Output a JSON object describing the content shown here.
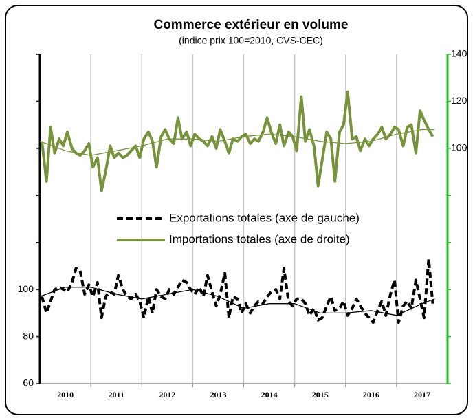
{
  "chart_data": {
    "type": "line",
    "title": "Commerce extérieur en volume",
    "subtitle": "(indice prix 100=2010, CVS-CEC)",
    "xlim": [
      2010,
      2018
    ],
    "xticks": [
      {
        "value": 2010.5,
        "label": "2010"
      },
      {
        "value": 2011.5,
        "label": "2011"
      },
      {
        "value": 2012.5,
        "label": "2012"
      },
      {
        "value": 2013.5,
        "label": "2013"
      },
      {
        "value": 2014.5,
        "label": "2014"
      },
      {
        "value": 2015.5,
        "label": "2015"
      },
      {
        "value": 2016.5,
        "label": "2016"
      },
      {
        "value": 2017.5,
        "label": "2017"
      }
    ],
    "xgrid": [
      2011,
      2012,
      2013,
      2014,
      2015,
      2016,
      2017
    ],
    "ylim": [
      60,
      200
    ],
    "yticks": [
      60,
      80,
      100
    ],
    "yticks_minor": [
      120,
      140,
      160,
      180,
      200
    ],
    "y2lim": [
      0,
      140
    ],
    "y2ticks": [
      100,
      120,
      140
    ],
    "y2ticks_minor": [
      0,
      20,
      40,
      60,
      80
    ],
    "x": [
      2010.04,
      2010.13,
      2010.21,
      2010.29,
      2010.38,
      2010.46,
      2010.54,
      2010.63,
      2010.71,
      2010.79,
      2010.88,
      2010.96,
      2011.04,
      2011.13,
      2011.21,
      2011.29,
      2011.38,
      2011.46,
      2011.54,
      2011.63,
      2011.71,
      2011.79,
      2011.88,
      2011.96,
      2012.04,
      2012.13,
      2012.21,
      2012.29,
      2012.38,
      2012.46,
      2012.54,
      2012.63,
      2012.71,
      2012.79,
      2012.88,
      2012.96,
      2013.04,
      2013.13,
      2013.21,
      2013.29,
      2013.38,
      2013.46,
      2013.54,
      2013.63,
      2013.71,
      2013.79,
      2013.88,
      2013.96,
      2014.04,
      2014.13,
      2014.21,
      2014.29,
      2014.38,
      2014.46,
      2014.54,
      2014.63,
      2014.71,
      2014.79,
      2014.88,
      2014.96,
      2015.04,
      2015.13,
      2015.21,
      2015.29,
      2015.38,
      2015.46,
      2015.54,
      2015.63,
      2015.71,
      2015.79,
      2015.88,
      2015.96,
      2016.04,
      2016.13,
      2016.21,
      2016.29,
      2016.38,
      2016.46,
      2016.54,
      2016.63,
      2016.71,
      2016.79,
      2016.88,
      2016.96,
      2017.04,
      2017.13,
      2017.21,
      2017.29,
      2017.38,
      2017.46,
      2017.54,
      2017.63,
      2017.71
    ],
    "series": [
      {
        "name": "Exportations totales (axe de gauche)",
        "color": "#000000",
        "dashed": true,
        "width": 4,
        "axis": "y",
        "values": [
          97,
          90,
          95,
          100,
          101,
          100,
          99,
          103,
          109,
          108,
          98,
          102,
          97,
          103,
          88,
          97,
          99,
          98,
          106,
          100,
          97,
          96,
          98,
          95,
          88,
          97,
          90,
          100,
          97,
          96,
          100,
          98,
          101,
          104,
          103,
          100,
          98,
          101,
          97,
          106,
          99,
          93,
          98,
          107,
          88,
          97,
          96,
          90,
          94,
          90,
          93,
          95,
          94,
          97,
          99,
          100,
          96,
          109,
          95,
          93,
          96,
          96,
          94,
          89,
          92,
          87,
          88,
          93,
          97,
          91,
          92,
          95,
          89,
          92,
          96,
          93,
          90,
          88,
          86,
          91,
          95,
          89,
          98,
          104,
          86,
          93,
          95,
          92,
          104,
          96,
          88,
          113,
          94
        ]
      },
      {
        "name": "Importations totales (axe de droite)",
        "color": "#77933c",
        "dashed": false,
        "width": 4,
        "axis": "y2",
        "values": [
          103,
          86,
          109,
          98,
          104,
          101,
          107,
          100,
          98,
          97,
          99,
          102,
          92,
          96,
          82,
          90,
          101,
          96,
          98,
          96,
          97,
          99,
          101,
          96,
          104,
          107,
          103,
          92,
          105,
          108,
          104,
          102,
          113,
          104,
          107,
          101,
          106,
          104,
          103,
          101,
          105,
          100,
          108,
          103,
          98,
          104,
          103,
          105,
          106,
          102,
          104,
          103,
          107,
          113,
          107,
          102,
          110,
          101,
          107,
          105,
          99,
          122,
          103,
          108,
          101,
          84,
          95,
          107,
          104,
          86,
          107,
          110,
          124,
          104,
          105,
          99,
          104,
          101,
          104,
          106,
          109,
          104,
          106,
          109,
          108,
          101,
          109,
          110,
          98,
          116,
          112,
          108,
          105
        ]
      },
      {
        "color": "#000000",
        "dashed": false,
        "width": 1.3,
        "axis": "y",
        "x": [
          2010.0,
          2010.5,
          2011.0,
          2011.5,
          2012.0,
          2012.5,
          2013.0,
          2013.5,
          2014.0,
          2014.5,
          2015.0,
          2015.5,
          2016.0,
          2016.5,
          2017.0,
          2017.5,
          2017.75
        ],
        "values": [
          97,
          101,
          101,
          98,
          96,
          98,
          100,
          97,
          92,
          94,
          94,
          90,
          90,
          91,
          89,
          94,
          96
        ]
      },
      {
        "color": "#77933c",
        "dashed": false,
        "width": 1.3,
        "axis": "y2",
        "x": [
          2010.0,
          2010.5,
          2011.0,
          2011.5,
          2012.0,
          2012.5,
          2013.0,
          2013.5,
          2014.0,
          2014.5,
          2015.0,
          2015.5,
          2016.0,
          2016.5,
          2017.0,
          2017.5,
          2017.75
        ],
        "values": [
          103,
          99,
          97,
          99,
          101,
          104,
          104,
          103,
          105,
          106,
          105,
          103,
          102,
          103,
          106,
          108,
          108
        ]
      }
    ]
  }
}
